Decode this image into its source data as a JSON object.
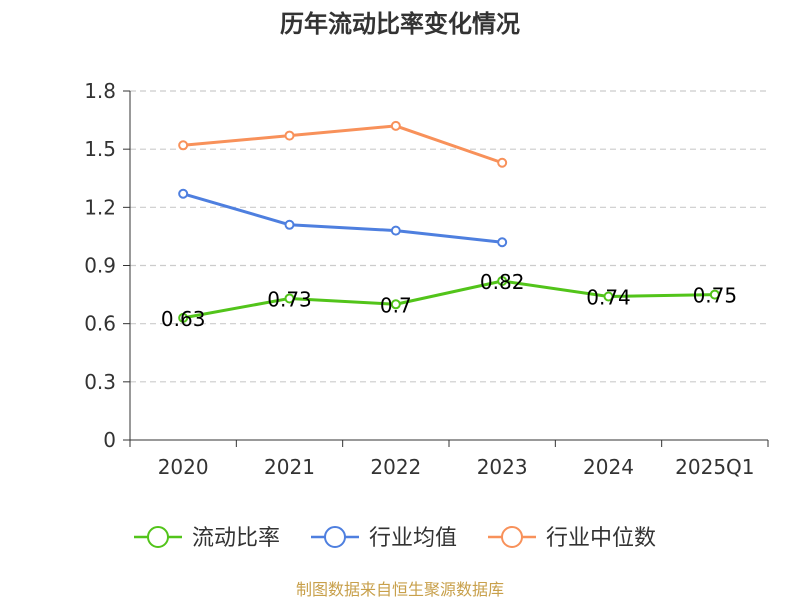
{
  "chart_data": {
    "type": "line",
    "title": "历年流动比率变化情况",
    "categories": [
      "2020",
      "2021",
      "2022",
      "2023",
      "2024",
      "2025Q1"
    ],
    "ylim": [
      0,
      1.8
    ],
    "yticks": [
      "0",
      "0.3",
      "0.6",
      "0.9",
      "1.2",
      "1.5",
      "1.8"
    ],
    "grid": true,
    "legend_position": "bottom",
    "series": [
      {
        "name": "流动比率",
        "color": "#52c41a",
        "values": [
          0.63,
          0.73,
          0.7,
          0.82,
          0.74,
          0.75
        ],
        "data_labels": [
          "0.63",
          "0.73",
          "0.7",
          "0.82",
          "0.74",
          "0.75"
        ]
      },
      {
        "name": "行业均值",
        "color": "#4e7fdf",
        "values": [
          1.27,
          1.11,
          1.08,
          1.02,
          null,
          null
        ]
      },
      {
        "name": "行业中位数",
        "color": "#f8915a",
        "values": [
          1.52,
          1.57,
          1.62,
          1.43,
          null,
          null
        ]
      }
    ]
  },
  "source": "制图数据来自恒生聚源数据库"
}
